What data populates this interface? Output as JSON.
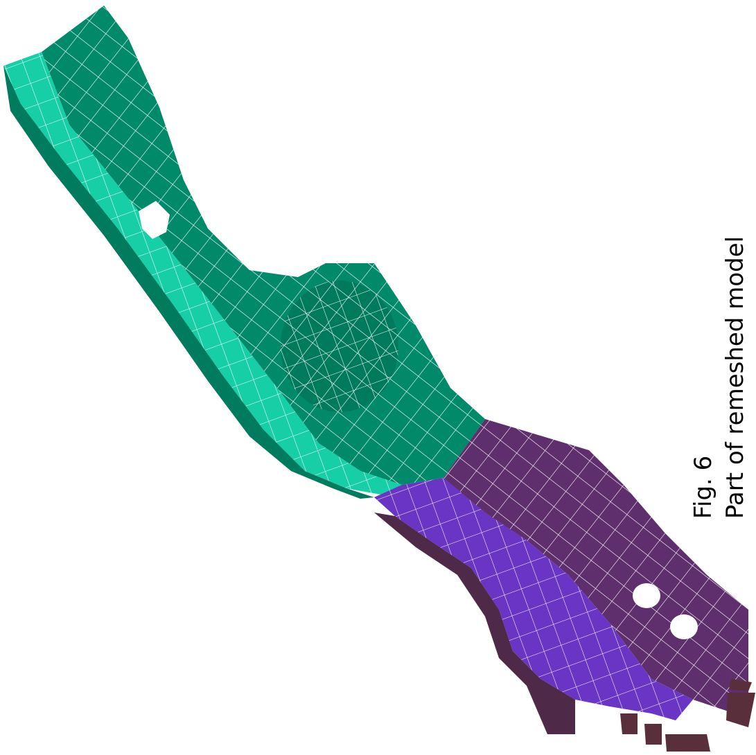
{
  "figure": {
    "label": "Fig. 6",
    "caption": "Part of remeshed model"
  },
  "colors": {
    "background": "#ffffff",
    "green_main": "#008a6a",
    "green_light": "#16cfa7",
    "green_dark": "#006e55",
    "purple_main": "#5e2f6c",
    "purple_dark": "#4f2a48",
    "violet": "#6a34c4",
    "maroon": "#5a2f3c",
    "mesh_lines": "#ffffff"
  }
}
